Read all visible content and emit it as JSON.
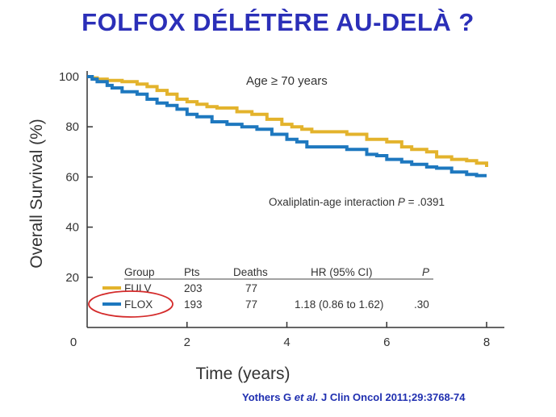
{
  "slide": {
    "title": "FOLFOX DÉLÉTÈRE AU-DELÀ ?",
    "citation_pre": "Yothers G ",
    "citation_em": "et al.",
    "citation_post": " J Clin Oncol 2011;29:3768-74"
  },
  "chart_data": {
    "type": "line",
    "subtitle": "Age ≥ 70 years",
    "xlabel": "Time (years)",
    "ylabel": "Overall Survival (%)",
    "xlim": [
      0,
      8
    ],
    "ylim": [
      0,
      100
    ],
    "xticks": [
      0,
      2,
      4,
      6,
      8
    ],
    "yticks": [
      20,
      40,
      60,
      80,
      100
    ],
    "grid": false,
    "step": true,
    "annotation": {
      "text_pre": "Oxaliplatin-age interaction ",
      "text_p": "P",
      "text_post": " = .0391"
    },
    "series": [
      {
        "name": "FULV",
        "color": "#e3b32c",
        "x": [
          0,
          0.1,
          0.2,
          0.4,
          0.7,
          1.0,
          1.2,
          1.4,
          1.6,
          1.8,
          2.0,
          2.2,
          2.4,
          2.6,
          3.0,
          3.3,
          3.6,
          3.9,
          4.1,
          4.3,
          4.5,
          4.8,
          5.2,
          5.6,
          6.0,
          6.3,
          6.5,
          6.8,
          7.0,
          7.3,
          7.6,
          7.8,
          8.0
        ],
        "y": [
          100,
          99.5,
          99,
          98.5,
          98,
          97,
          96,
          94.5,
          93,
          91,
          90,
          89,
          88,
          87.5,
          86,
          85,
          83,
          81,
          80,
          79,
          78,
          78,
          77,
          75,
          74,
          72,
          71,
          70,
          68,
          67,
          66.5,
          65.5,
          64
        ]
      },
      {
        "name": "FLOX",
        "color": "#1e78bf",
        "x": [
          0,
          0.1,
          0.2,
          0.4,
          0.5,
          0.7,
          1.0,
          1.2,
          1.4,
          1.6,
          1.8,
          2.0,
          2.2,
          2.5,
          2.8,
          3.1,
          3.4,
          3.7,
          4.0,
          4.2,
          4.4,
          4.8,
          5.2,
          5.6,
          5.8,
          6.0,
          6.3,
          6.5,
          6.8,
          7.0,
          7.3,
          7.6,
          7.8,
          8.0
        ],
        "y": [
          100,
          99,
          98,
          96.5,
          95.5,
          94,
          93,
          91,
          89.5,
          88.5,
          87,
          85,
          84,
          82,
          81,
          80,
          79,
          77,
          75,
          74,
          72,
          72,
          71,
          69,
          68.5,
          67,
          66,
          65,
          64,
          63.5,
          62,
          61,
          60.5,
          60.5
        ]
      }
    ],
    "table": {
      "headers": {
        "group": "Group",
        "pts": "Pts",
        "deaths": "Deaths",
        "hr": "HR (95% CI)",
        "p": "P"
      },
      "rows": [
        {
          "group": "FULV",
          "pts": "203",
          "deaths": "77",
          "hr": "",
          "p": ""
        },
        {
          "group": "FLOX",
          "pts": "193",
          "deaths": "77",
          "hr": "1.18 (0.86 to 1.62)",
          "p": ".30"
        }
      ]
    },
    "highlight_color": "#d42b2b"
  }
}
